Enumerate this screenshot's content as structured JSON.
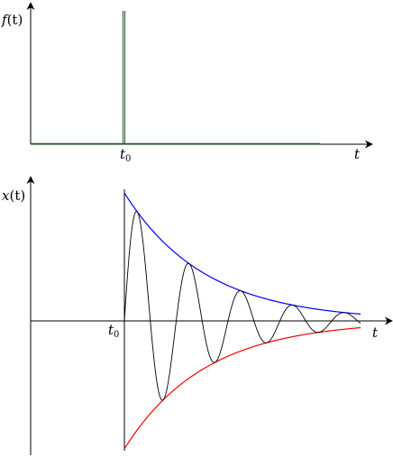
{
  "top_panel": {
    "y_label": {
      "main": "f",
      "rest": "(t)"
    },
    "x_label": "t",
    "impulse_label": {
      "main": "t",
      "sub": "0"
    }
  },
  "bottom_panel": {
    "y_label": {
      "main": "x",
      "rest": "(t)"
    },
    "x_label": "t",
    "start_label": {
      "main": "t",
      "sub": "0"
    }
  },
  "colors": {
    "axis": "#000000",
    "impulse": "#1e5a1e",
    "envelope_upper": "#0000ff",
    "envelope_lower": "#ff0000",
    "oscillation": "#000000"
  },
  "icons": {
    "axis_arrowheads": "arrowhead-icon"
  }
}
